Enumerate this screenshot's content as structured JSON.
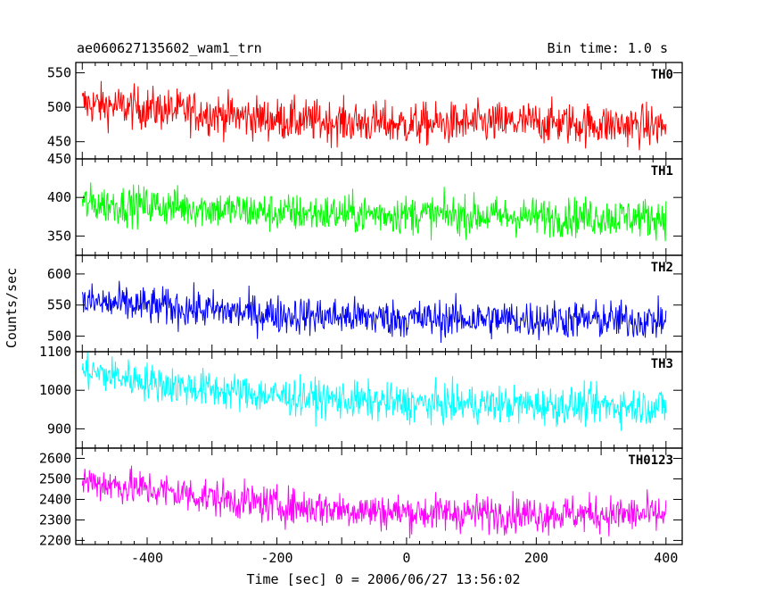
{
  "header": {
    "title": "ae060627135602_wam1_trn",
    "bin_time": "Bin time: 1.0 s"
  },
  "y_axis_label": "Counts/sec",
  "x_axis_label": "Time [sec] 0 = 2006/06/27 13:56:02",
  "chart_data": {
    "type": "line",
    "xlim": [
      -510,
      425
    ],
    "x_ticks": [
      -400,
      -200,
      0,
      200,
      400
    ],
    "bin_time_s": 1.0,
    "x_start": -500,
    "x_end": 400,
    "panels": [
      {
        "name": "TH0",
        "color": "#ff0000",
        "ylim": [
          425,
          565
        ],
        "y_ticks": [
          450,
          500,
          550
        ],
        "trend": [
          [
            -500,
            505
          ],
          [
            -350,
            495
          ],
          [
            -200,
            482
          ],
          [
            0,
            475
          ],
          [
            200,
            478
          ],
          [
            400,
            472
          ]
        ],
        "noise": 22
      },
      {
        "name": "TH1",
        "color": "#00ff00",
        "ylim": [
          325,
          450
        ],
        "y_ticks": [
          350,
          400,
          450
        ],
        "trend": [
          [
            -500,
            392
          ],
          [
            -350,
            388
          ],
          [
            -200,
            380
          ],
          [
            0,
            378
          ],
          [
            200,
            375
          ],
          [
            400,
            374
          ]
        ],
        "noise": 18
      },
      {
        "name": "TH2",
        "color": "#0000ff",
        "ylim": [
          475,
          630
        ],
        "y_ticks": [
          500,
          550,
          600
        ],
        "trend": [
          [
            -500,
            555
          ],
          [
            -350,
            545
          ],
          [
            -200,
            535
          ],
          [
            0,
            528
          ],
          [
            200,
            527
          ],
          [
            400,
            525
          ]
        ],
        "noise": 22
      },
      {
        "name": "TH3",
        "color": "#00ffff",
        "ylim": [
          850,
          1100
        ],
        "y_ticks": [
          900,
          1000,
          1100
        ],
        "trend": [
          [
            -500,
            1050
          ],
          [
            -350,
            1010
          ],
          [
            -200,
            985
          ],
          [
            0,
            965
          ],
          [
            200,
            962
          ],
          [
            400,
            958
          ]
        ],
        "noise": 35
      },
      {
        "name": "TH0123",
        "color": "#ff00ff",
        "ylim": [
          2180,
          2650
        ],
        "y_ticks": [
          2200,
          2300,
          2400,
          2500,
          2600
        ],
        "trend": [
          [
            -500,
            2490
          ],
          [
            -350,
            2430
          ],
          [
            -200,
            2370
          ],
          [
            0,
            2335
          ],
          [
            200,
            2330
          ],
          [
            400,
            2325
          ]
        ],
        "noise": 65
      }
    ]
  }
}
